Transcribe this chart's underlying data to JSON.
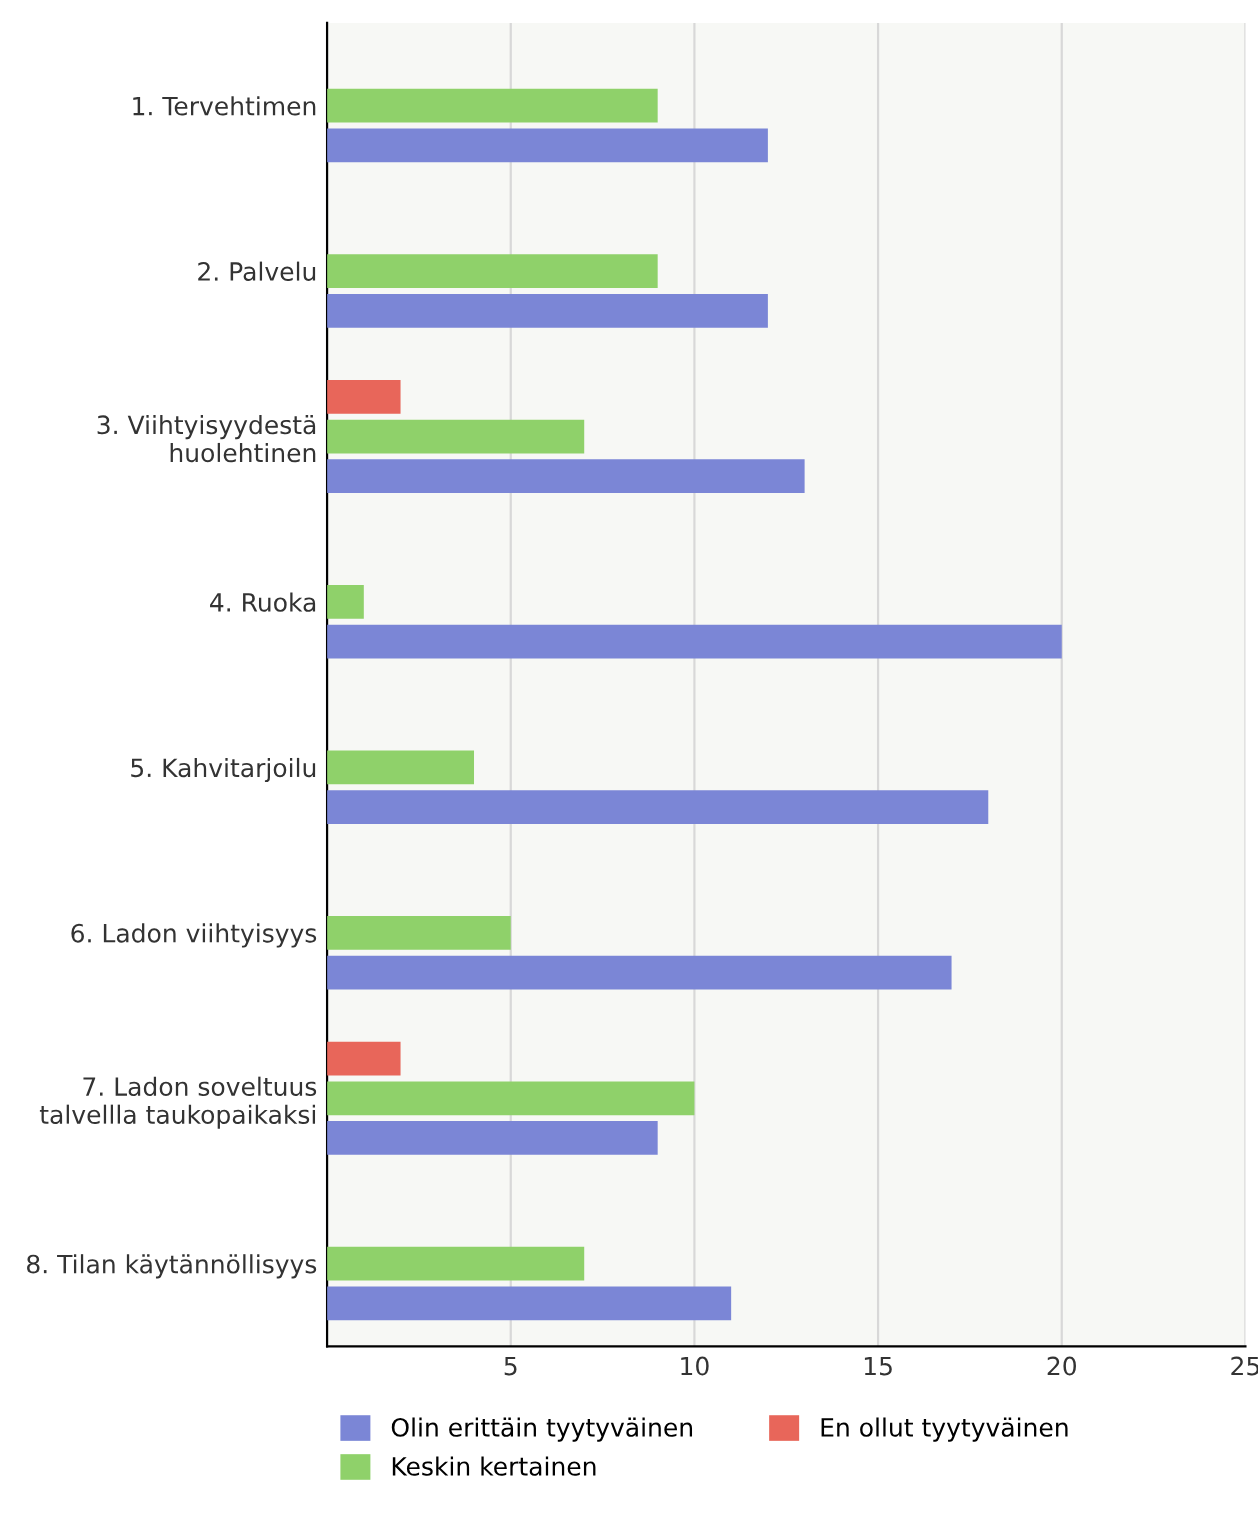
{
  "chart_data": {
    "type": "bar",
    "orientation": "horizontal",
    "categories": [
      "1. Tervehtimen",
      "2. Palvelu",
      "3. Viihtyisyydestä\nhuolehtinen",
      "4. Ruoka",
      "5. Kahvitarjoilu",
      "6. Ladon viihtyisyys",
      "7. Ladon soveltuus\ntalvellla taukopaikaksi",
      "8. Tilan käytännöllisyys"
    ],
    "series": [
      {
        "name": "Olin erittäin tyytyväinen",
        "color": "#7b86d6",
        "values": [
          12,
          12,
          13,
          20,
          18,
          17,
          9,
          11
        ]
      },
      {
        "name": "Keskin kertainen",
        "color": "#8fd16a",
        "values": [
          9,
          9,
          7,
          1,
          4,
          5,
          10,
          7
        ]
      },
      {
        "name": "En ollut tyytyväinen",
        "color": "#e8665a",
        "values": [
          null,
          null,
          2,
          null,
          null,
          null,
          2,
          null
        ]
      }
    ],
    "xlim": [
      0,
      25
    ],
    "xticks": [
      5,
      10,
      15,
      20,
      25
    ],
    "grid": "x",
    "legend": "bottom"
  }
}
